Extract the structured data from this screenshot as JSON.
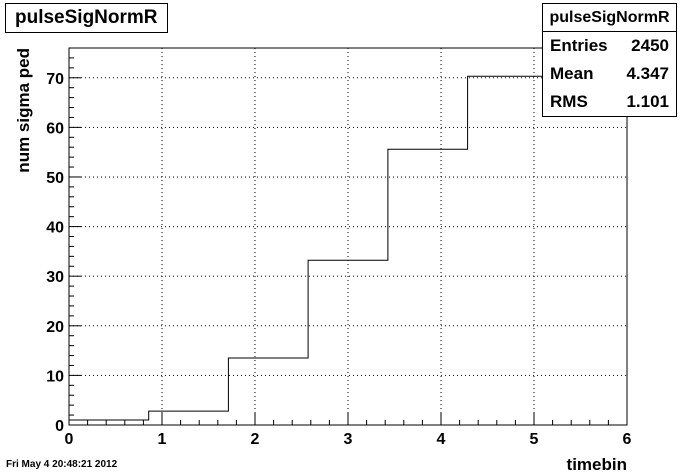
{
  "chart_data": {
    "type": "line",
    "title": "pulseSigNormR",
    "xlabel": "timebin",
    "ylabel": "num sigma ped",
    "xlim": [
      0,
      6
    ],
    "ylim": [
      0,
      76
    ],
    "grid": true,
    "x_ticks": [
      "0",
      "1",
      "2",
      "3",
      "4",
      "5",
      "6"
    ],
    "y_ticks": [
      "0",
      "10",
      "20",
      "30",
      "40",
      "50",
      "60",
      "70"
    ],
    "bin_edges": [
      0,
      0.857,
      1.714,
      2.571,
      3.429,
      4.286,
      5.143,
      6
    ],
    "values": [
      1.0,
      2.8,
      13.5,
      33.2,
      55.6,
      70.3,
      70.3
    ]
  },
  "stats": {
    "title": "pulseSigNormR",
    "entries_label": "Entries",
    "entries_value": "2450",
    "mean_label": "Mean",
    "mean_value": "4.347",
    "rms_label": "RMS",
    "rms_value": "1.101"
  },
  "footer": {
    "timestamp": "Fri May  4 20:48:21 2012"
  }
}
